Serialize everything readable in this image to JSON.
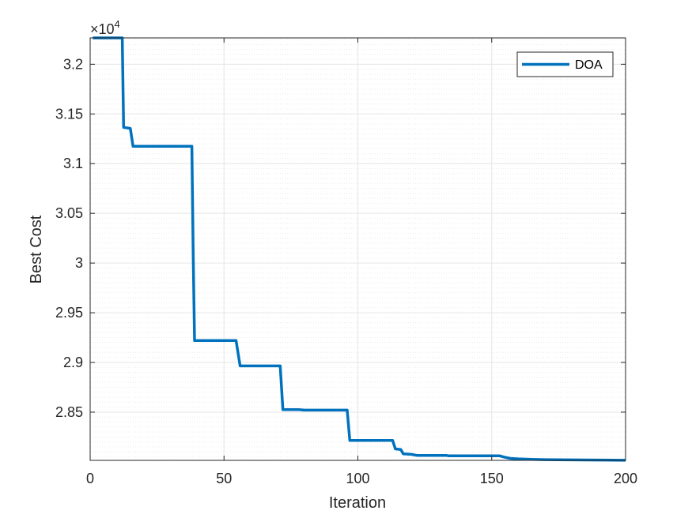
{
  "chart_data": {
    "type": "line",
    "title": "",
    "xlabel": "Iteration",
    "ylabel": "Best Cost",
    "xlim": [
      0,
      200
    ],
    "ylim": [
      2.8015,
      3.2265
    ],
    "y_scale_multiplier": "×10",
    "y_scale_exponent": "4",
    "x_ticks": [
      0,
      50,
      100,
      150,
      200
    ],
    "x_tick_labels": [
      "0",
      "50",
      "100",
      "150",
      "200"
    ],
    "y_ticks": [
      2.85,
      2.9,
      2.95,
      3.0,
      3.05,
      3.1,
      3.15,
      3.2
    ],
    "y_tick_labels": [
      "2.85",
      "2.9",
      "2.95",
      "3",
      "3.05",
      "3.1",
      "3.15",
      "3.2"
    ],
    "grid": true,
    "minor_grid": true,
    "legend_position": "top-right",
    "colors": {
      "series": "#0072BD",
      "grid": "#e6e6e6",
      "axis": "#262626"
    },
    "series": [
      {
        "name": "DOA",
        "x": [
          1,
          12,
          12.5,
          15,
          16,
          38,
          38.5,
          39,
          54.5,
          56,
          71,
          72,
          78,
          80,
          96,
          97,
          113,
          114,
          116,
          117,
          120,
          122,
          133,
          134,
          153,
          155,
          157,
          160,
          165,
          170,
          180,
          190,
          200
        ],
        "y": [
          3.2265,
          3.2265,
          3.1365,
          3.1355,
          3.1175,
          3.1175,
          3.008,
          2.922,
          2.922,
          2.8965,
          2.8965,
          2.8525,
          2.8525,
          2.852,
          2.852,
          2.8215,
          2.8215,
          2.813,
          2.8125,
          2.808,
          2.8075,
          2.8065,
          2.8065,
          2.806,
          2.806,
          2.8045,
          2.8035,
          2.803,
          2.8025,
          2.8022,
          2.802,
          2.8018,
          2.8016
        ]
      }
    ]
  }
}
